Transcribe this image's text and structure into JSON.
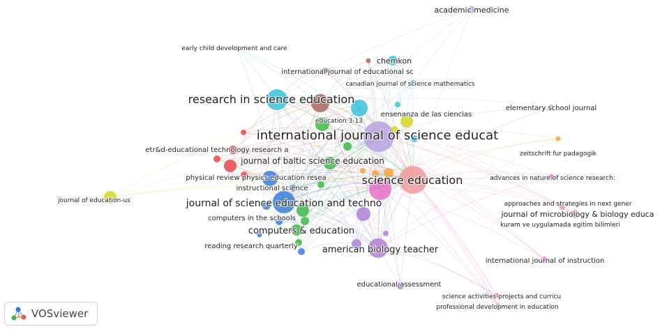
{
  "labels": {
    "academic_medicine": "academic medicine",
    "early_child": "early child development and care",
    "chemkon": "chemkon",
    "ijes": "international journal of educational sc",
    "canadian": "canadian journal of science mathematics",
    "rise": "research in science education",
    "education_3_13": "education 3-13",
    "ensenanza": "ensenanza de las ciencias",
    "elementary": "elementary school journal",
    "ijse": "international journal of science educat",
    "etrd": "etr&d-educational technology research a",
    "zeitschrift": "zeitschrift fur padagogik",
    "jbse": "journal of baltic science education",
    "physrev": "physical review physics education resea",
    "science_education": "science education",
    "advances": "advances in nature of science research:",
    "instructional": "instructional science",
    "journal_edu_us": "journal of education-us",
    "jset": "journal of science education and techno",
    "approaches": "approaches and strategies in next gener",
    "microbio": "journal of microbiology & biology educa",
    "computers_schools": "computers in the schools",
    "kuram": "kuram ve uygulamada egitim bilimleri",
    "computers_education": "computers & education",
    "reading": "reading research quarterly",
    "abt": "american biology teacher",
    "ijinstruction": "international journal of instruction",
    "edu_assessment": "educational assessment",
    "sci_activities": "science activities-projects and curricu",
    "prof_dev": "professional development in education"
  },
  "branding": {
    "name": "VOSviewer"
  },
  "colors": {
    "red": "#e5484d",
    "green": "#3fb84a",
    "blue": "#3b7dd8",
    "yellow": "#d6d626",
    "purple": "#b07fd6",
    "cyan": "#39c3da",
    "orange": "#f4a344",
    "brown": "#a86b5c",
    "pink": "#ea6fc9",
    "lavender": "#b8a2e0",
    "salmon": "#ef9a9a"
  }
}
